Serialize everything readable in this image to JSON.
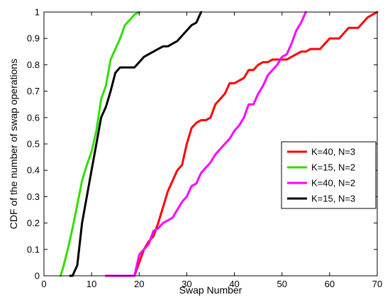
{
  "chart_data": {
    "type": "line",
    "title": "",
    "xlabel": "Swap Number",
    "ylabel": "CDF of the number of swap operations",
    "xlim": [
      0,
      70
    ],
    "ylim": [
      0,
      1
    ],
    "xticks": [
      0,
      10,
      20,
      30,
      40,
      50,
      60,
      70
    ],
    "yticks": [
      0,
      0.1,
      0.2,
      0.3,
      0.4,
      0.5,
      0.6,
      0.7,
      0.8,
      0.9,
      1
    ],
    "grid": false,
    "legend_position": "right-middle",
    "series": [
      {
        "name": "K=40, N=3",
        "color": "#ff0000",
        "x": [
          19,
          20,
          21,
          22,
          23,
          24,
          25,
          26,
          27,
          28,
          29,
          30,
          31,
          32,
          33,
          34,
          35,
          36,
          37,
          38,
          39,
          40,
          41,
          42,
          43,
          44,
          45,
          46,
          47,
          48,
          49,
          50,
          51,
          52,
          53,
          54,
          55,
          56,
          57,
          58,
          59,
          60,
          61,
          62,
          63,
          64,
          65,
          66,
          67,
          68,
          69,
          70
        ],
        "y": [
          0,
          0.05,
          0.1,
          0.13,
          0.15,
          0.2,
          0.26,
          0.32,
          0.36,
          0.4,
          0.42,
          0.5,
          0.56,
          0.58,
          0.59,
          0.59,
          0.6,
          0.65,
          0.67,
          0.69,
          0.73,
          0.73,
          0.74,
          0.75,
          0.78,
          0.78,
          0.8,
          0.81,
          0.81,
          0.82,
          0.82,
          0.82,
          0.82,
          0.83,
          0.84,
          0.85,
          0.85,
          0.86,
          0.86,
          0.86,
          0.88,
          0.9,
          0.9,
          0.9,
          0.92,
          0.94,
          0.94,
          0.94,
          0.96,
          0.98,
          0.99,
          1.0
        ]
      },
      {
        "name": "K=15, N=2",
        "color": "#33dd00",
        "x": [
          3.5,
          4,
          5,
          6,
          7,
          8,
          9,
          10,
          11,
          12,
          13,
          14,
          15,
          16,
          17,
          18,
          19,
          20
        ],
        "y": [
          0,
          0.03,
          0.1,
          0.18,
          0.27,
          0.36,
          0.42,
          0.47,
          0.55,
          0.67,
          0.72,
          0.82,
          0.86,
          0.9,
          0.95,
          0.97,
          0.99,
          1.0
        ]
      },
      {
        "name": "K=40, N=2",
        "color": "#ff00ff",
        "x": [
          13,
          19,
          20,
          21,
          22,
          23,
          24,
          25,
          26,
          27,
          28,
          29,
          30,
          31,
          32,
          33,
          34,
          35,
          36,
          37,
          38,
          39,
          40,
          41,
          42,
          43,
          44,
          45,
          46,
          47,
          48,
          49,
          50,
          51,
          52,
          53,
          54,
          55
        ],
        "y": [
          0,
          0,
          0.08,
          0.1,
          0.12,
          0.17,
          0.18,
          0.2,
          0.21,
          0.22,
          0.25,
          0.28,
          0.3,
          0.34,
          0.35,
          0.39,
          0.41,
          0.43,
          0.46,
          0.48,
          0.5,
          0.52,
          0.55,
          0.57,
          0.6,
          0.65,
          0.65,
          0.69,
          0.72,
          0.76,
          0.78,
          0.8,
          0.83,
          0.84,
          0.88,
          0.93,
          0.96,
          1.0
        ]
      },
      {
        "name": "K=15, N=3",
        "color": "#000000",
        "x": [
          5.5,
          6,
          7,
          8,
          9,
          10,
          11,
          12,
          13,
          14,
          15,
          16,
          17,
          18,
          19,
          20,
          21,
          22,
          23,
          24,
          25,
          26,
          27,
          28,
          29,
          30,
          31,
          32,
          33
        ],
        "y": [
          0,
          0,
          0.04,
          0.2,
          0.3,
          0.4,
          0.5,
          0.6,
          0.64,
          0.7,
          0.77,
          0.79,
          0.79,
          0.79,
          0.79,
          0.81,
          0.83,
          0.84,
          0.85,
          0.86,
          0.87,
          0.87,
          0.88,
          0.89,
          0.91,
          0.93,
          0.95,
          0.96,
          1.0
        ]
      }
    ]
  }
}
